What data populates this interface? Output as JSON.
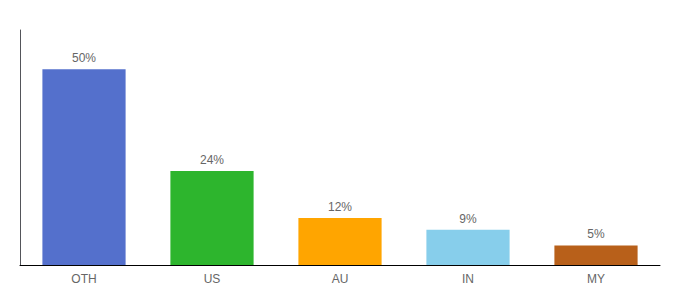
{
  "chart_data": {
    "type": "bar",
    "categories": [
      "OTH",
      "US",
      "AU",
      "IN",
      "MY"
    ],
    "values": [
      50,
      24,
      12,
      9,
      5
    ],
    "value_labels": [
      "50%",
      "24%",
      "12%",
      "9%",
      "5%"
    ],
    "colors": [
      "#5470cc",
      "#2db52d",
      "#ffa500",
      "#87ceeb",
      "#b8601a"
    ],
    "ylim": [
      0,
      60
    ],
    "data_labels": true,
    "tick_labels": "x",
    "grid": false
  }
}
